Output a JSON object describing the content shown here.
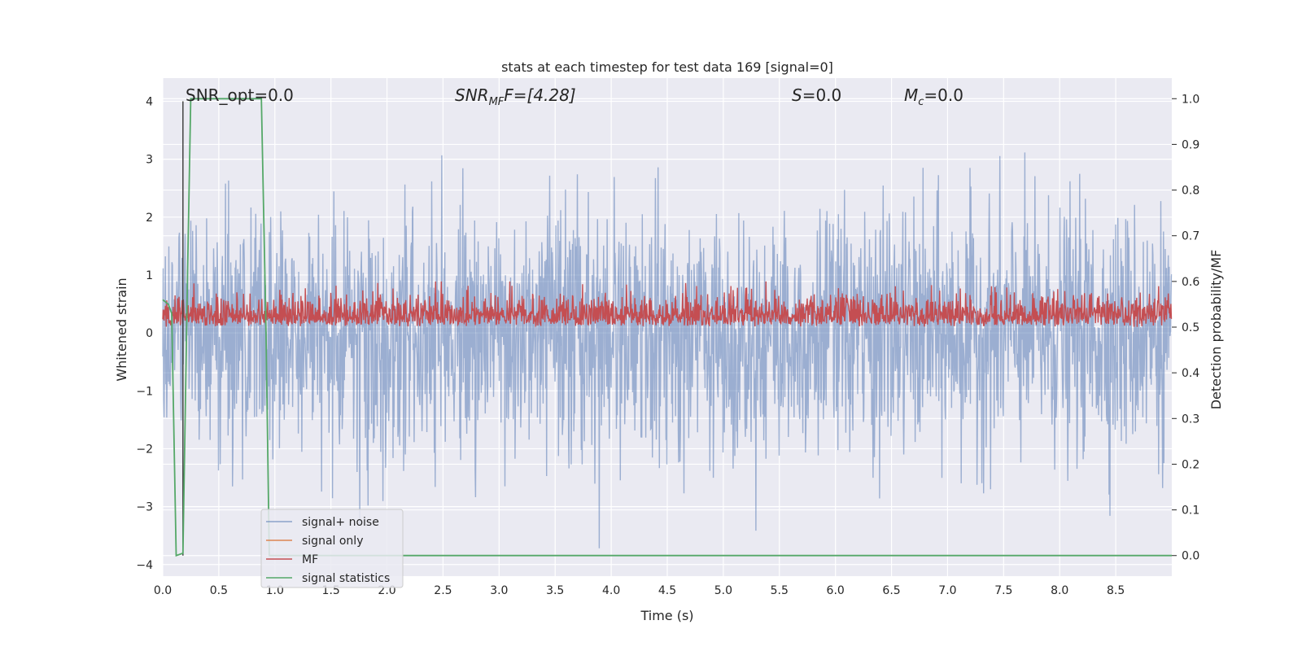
{
  "chart_data": {
    "type": "line",
    "title": "stats at each timestep for test data 169 [signal=0]",
    "xlabel": "Time (s)",
    "ylabel": "Whitened strain",
    "y2label": "Detection probability/MF",
    "xlim": [
      0.0,
      9.0
    ],
    "ylim": [
      -4.2,
      4.4
    ],
    "y2lim": [
      -0.045,
      1.045
    ],
    "xticks": [
      0.0,
      0.5,
      1.0,
      1.5,
      2.0,
      2.5,
      3.0,
      3.5,
      4.0,
      4.5,
      5.0,
      5.5,
      6.0,
      6.5,
      7.0,
      7.5,
      8.0,
      8.5
    ],
    "xtick_labels": [
      "0.0",
      "0.5",
      "1.0",
      "1.5",
      "2.0",
      "2.5",
      "3.0",
      "3.5",
      "4.0",
      "4.5",
      "5.0",
      "5.5",
      "6.0",
      "6.5",
      "7.0",
      "7.5",
      "8.0",
      "8.5"
    ],
    "yticks": [
      4,
      3,
      2,
      1,
      0,
      -1,
      -2,
      -3,
      -4
    ],
    "ytick_labels": [
      "4",
      "3",
      "2",
      "1",
      "0",
      "−1",
      "−2",
      "−3",
      "−4"
    ],
    "y2ticks": [
      1.0,
      0.9,
      0.8,
      0.7,
      0.6,
      0.5,
      0.4,
      0.3,
      0.2,
      0.1,
      0.0
    ],
    "y2tick_labels": [
      "1.0",
      "0.9",
      "0.8",
      "0.7",
      "0.6",
      "0.5",
      "0.4",
      "0.3",
      "0.2",
      "0.1",
      "0.0"
    ],
    "grid": true,
    "legend": "lower-left",
    "annotations": {
      "snr_opt": "SNR_opt=0.0",
      "snr_mf_main": "SNR",
      "snr_mf_sub": "MF",
      "snr_mf_rest": "F=[4.28]",
      "s_main": "S",
      "s_rest": "=0.0",
      "mc_main": "M",
      "mc_sub": "c",
      "mc_rest": "=0.0"
    },
    "marker_time": 0.18,
    "series": [
      {
        "name": "signal+ noise",
        "color": "#4c72b0",
        "axis": "left",
        "description_values": {
          "n": 2300,
          "sigma": 1.0,
          "max": 4.0,
          "min": -3.78
        }
      },
      {
        "name": "signal only",
        "color": "#dd8452",
        "axis": "left",
        "values": []
      },
      {
        "name": "MF",
        "color": "#c44e52",
        "axis": "right",
        "description_values": {
          "n": 2300,
          "base": 0.5,
          "max": 0.6
        }
      },
      {
        "name": "signal statistics",
        "color": "#55a868",
        "axis": "right",
        "x": [
          0.0,
          0.05,
          0.08,
          0.12,
          0.18,
          0.22,
          0.25,
          0.29,
          0.88,
          0.92,
          0.95,
          1.0,
          9.0
        ],
        "values": [
          0.56,
          0.55,
          0.53,
          0.0,
          0.005,
          0.6,
          1.0,
          1.0,
          1.0,
          0.5,
          0.0,
          0.0,
          0.0
        ]
      }
    ]
  }
}
